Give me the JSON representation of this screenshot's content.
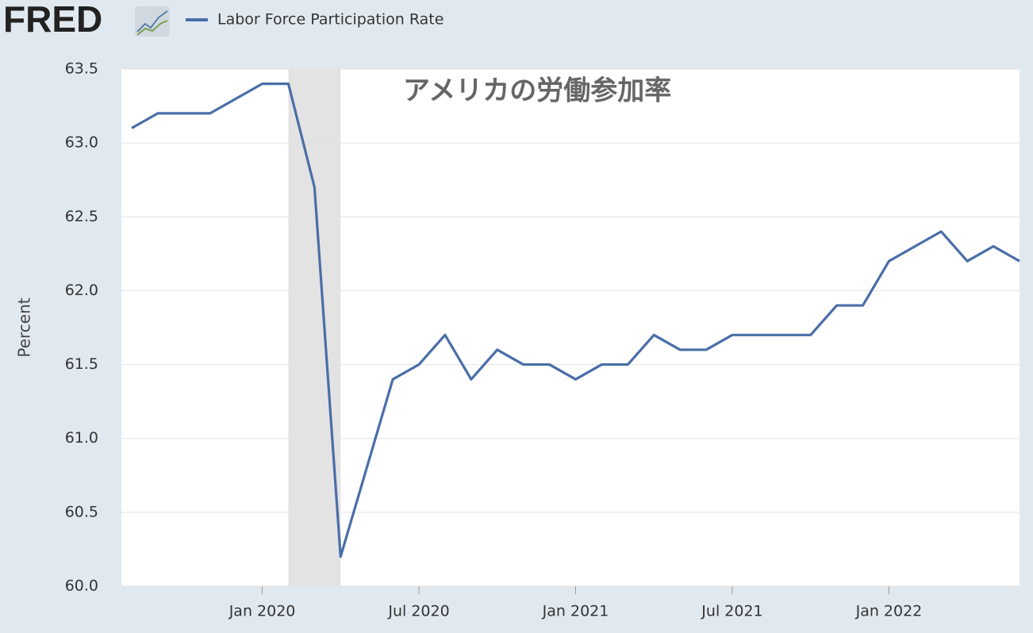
{
  "logo": "FRED",
  "chart_data": {
    "type": "line",
    "title": "アメリカの労働参加率",
    "y_label": "Percent",
    "x": [
      "2019-08",
      "2019-09",
      "2019-10",
      "2019-11",
      "2019-12",
      "2020-01",
      "2020-02",
      "2020-03",
      "2020-04",
      "2020-05",
      "2020-06",
      "2020-07",
      "2020-08",
      "2020-09",
      "2020-10",
      "2020-11",
      "2020-12",
      "2021-01",
      "2021-02",
      "2021-03",
      "2021-04",
      "2021-05",
      "2021-06",
      "2021-07",
      "2021-08",
      "2021-09",
      "2021-10",
      "2021-11",
      "2021-12",
      "2022-01",
      "2022-02",
      "2022-03",
      "2022-04",
      "2022-05",
      "2022-06"
    ],
    "series": [
      {
        "name": "Labor Force Participation Rate",
        "color": "#4a6ea8",
        "values": [
          63.1,
          63.2,
          63.2,
          63.2,
          63.3,
          63.4,
          63.4,
          62.7,
          60.2,
          60.8,
          61.4,
          61.5,
          61.7,
          61.4,
          61.6,
          61.5,
          61.5,
          61.4,
          61.5,
          61.5,
          61.7,
          61.6,
          61.6,
          61.7,
          61.7,
          61.7,
          61.7,
          61.9,
          61.9,
          62.2,
          62.3,
          62.4,
          62.2,
          62.3,
          62.2
        ]
      }
    ],
    "shaded_period": [
      "2020-02",
      "2020-04"
    ],
    "xlim": [
      "2019-08",
      "2022-06"
    ],
    "xticks": [
      {
        "value": "2020-01",
        "label": "Jan 2020"
      },
      {
        "value": "2020-07",
        "label": "Jul 2020"
      },
      {
        "value": "2021-01",
        "label": "Jan 2021"
      },
      {
        "value": "2021-07",
        "label": "Jul 2021"
      },
      {
        "value": "2022-01",
        "label": "Jan 2022"
      }
    ],
    "ylim": [
      60,
      63.5
    ],
    "yticks": [
      {
        "value": 60,
        "label": "60.0"
      },
      60.5,
      {
        "value": 61,
        "label": "61.0"
      },
      61.5,
      {
        "value": 62,
        "label": "62.0"
      },
      62.5,
      {
        "value": 63,
        "label": "63.0"
      },
      63.5
    ],
    "grid": true
  }
}
